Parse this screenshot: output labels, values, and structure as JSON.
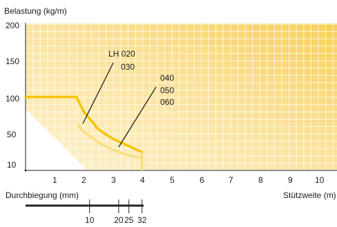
{
  "chart_data": {
    "type": "line",
    "ylabel": "Belastung (kg/m)",
    "xlabel": "Stützweite (m)",
    "y_ticks": [
      "200",
      "150",
      "100",
      "50",
      "10"
    ],
    "x_ticks": [
      "1",
      "2",
      "3",
      "4",
      "5",
      "6",
      "7",
      "8",
      "9",
      "10"
    ],
    "xlim": [
      0,
      10.7
    ],
    "ylim": [
      0,
      200
    ],
    "grid": true,
    "series": [
      {
        "name": "LH 020 030",
        "color": "#f5c400",
        "x": [
          0,
          1.75,
          2.0,
          2.5,
          3.0,
          3.5,
          4.0
        ],
        "y": [
          100,
          100,
          80,
          56,
          43,
          34,
          25
        ]
      },
      {
        "name": "040 050 060",
        "color": "#f9dd77",
        "x": [
          1.8,
          2.0,
          2.5,
          3.0,
          3.5,
          4.0
        ],
        "y": [
          62,
          53,
          38,
          28,
          21,
          17
        ]
      }
    ],
    "annotations": {
      "group1": [
        "LH 020",
        "030"
      ],
      "group2": [
        "040",
        "050",
        "060"
      ]
    },
    "deflection": {
      "label": "Durchbiegung (mm)",
      "ticks": [
        {
          "label": "10",
          "x": 2.2
        },
        {
          "label": "20",
          "x": 3.2
        },
        {
          "label": "25",
          "x": 3.55
        },
        {
          "label": "32",
          "x": 4.0
        }
      ]
    }
  }
}
